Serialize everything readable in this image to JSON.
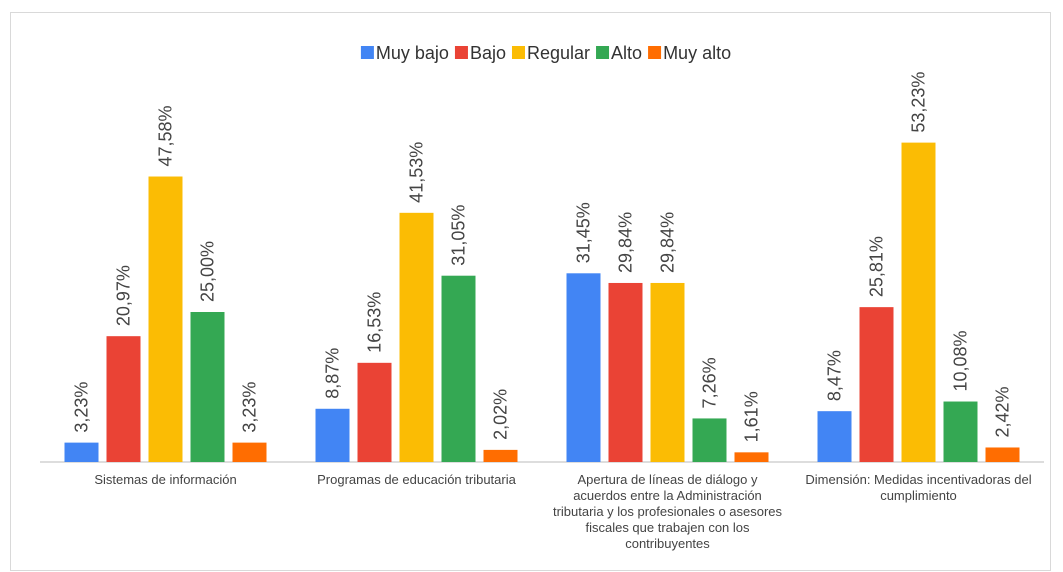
{
  "chart_data": {
    "type": "bar",
    "categories": [
      "Sistemas de información",
      "Programas de educación tributaria",
      "Apertura de líneas de diálogo y acuerdos entre la Administración tributaria y los profesionales o asesores fiscales que trabajen con los contribuyentes",
      "Dimensión: Medidas incentivadoras del cumplimiento"
    ],
    "series": [
      {
        "name": "Muy bajo",
        "color": "#4285f4",
        "values": [
          3.23,
          8.87,
          31.45,
          8.47
        ],
        "value_labels": [
          "3,23%",
          "8,87%",
          "31,45%",
          "8,47%"
        ]
      },
      {
        "name": "Bajo",
        "color": "#ea4335",
        "values": [
          20.97,
          16.53,
          29.84,
          25.81
        ],
        "value_labels": [
          "20,97%",
          "16,53%",
          "29,84%",
          "25,81%"
        ]
      },
      {
        "name": "Regular",
        "color": "#fbbc04",
        "values": [
          47.58,
          41.53,
          29.84,
          53.23
        ],
        "value_labels": [
          "47,58%",
          "41,53%",
          "29,84%",
          "53,23%"
        ]
      },
      {
        "name": "Alto",
        "color": "#34a853",
        "values": [
          25.0,
          31.05,
          7.26,
          10.08
        ],
        "value_labels": [
          "25,00%",
          "31,05%",
          "7,26%",
          "10,08%"
        ]
      },
      {
        "name": "Muy alto",
        "color": "#ff6d01",
        "values": [
          3.23,
          2.02,
          1.61,
          2.42
        ],
        "value_labels": [
          "3,23%",
          "2,02%",
          "1,61%",
          "2,42%"
        ]
      }
    ],
    "ylim": [
      0,
      60
    ],
    "legend": "top"
  }
}
